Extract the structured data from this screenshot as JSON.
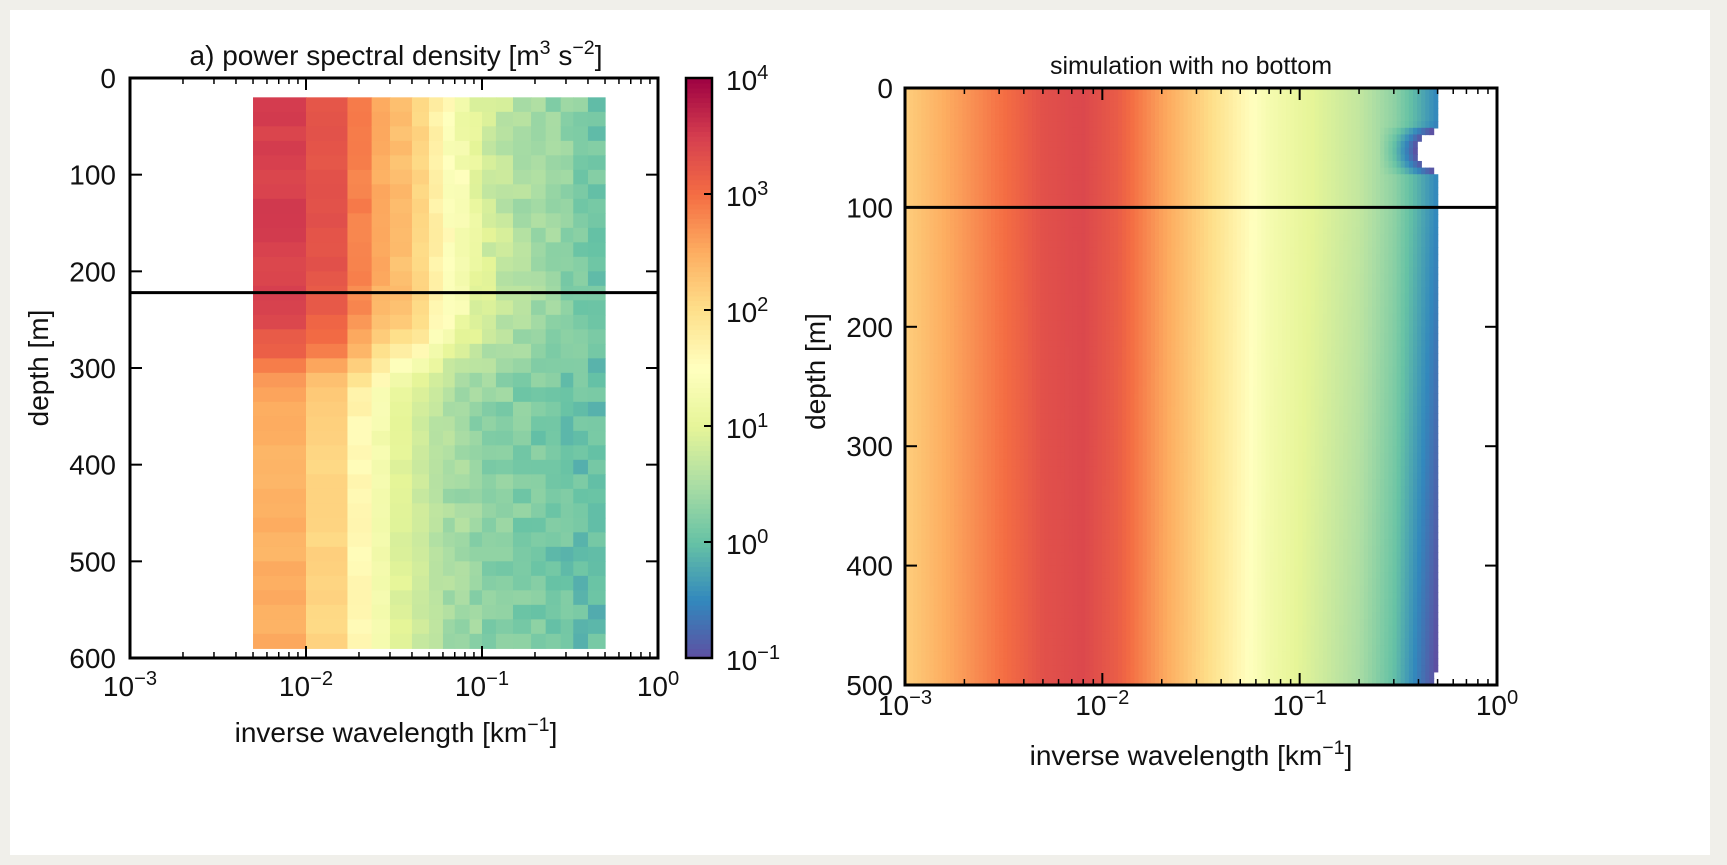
{
  "figure": {
    "background": "#ffffff",
    "frame_color": "#f0efea"
  },
  "chart_data": [
    {
      "type": "heatmap",
      "title_parts": [
        "a) power spectral density [m",
        "3",
        " s",
        "−2",
        "]"
      ],
      "xlabel_parts": [
        "inverse wavelength [km",
        "−1",
        "]"
      ],
      "ylabel": "depth [m]",
      "x_scale": "log",
      "xlim": [
        0.001,
        1
      ],
      "ylim": [
        600,
        0
      ],
      "x_ticks": [
        {
          "value": 0.001,
          "base": "10",
          "exp": "−3"
        },
        {
          "value": 0.01,
          "base": "10",
          "exp": "−2"
        },
        {
          "value": 0.1,
          "base": "10",
          "exp": "−1"
        },
        {
          "value": 1,
          "base": "10",
          "exp": "0"
        }
      ],
      "y_ticks": [
        "0",
        "100",
        "200",
        "300",
        "400",
        "500",
        "600"
      ],
      "data_x_range": [
        0.005,
        0.5
      ],
      "data_y_range": [
        20,
        590
      ],
      "x_bin_edges": [
        0.005,
        0.01,
        0.0172,
        0.0236,
        0.03,
        0.04,
        0.05,
        0.06,
        0.07,
        0.085,
        0.1,
        0.12,
        0.15,
        0.19,
        0.23,
        0.28,
        0.33,
        0.4,
        0.5
      ],
      "column_psd_upper": [
        3000,
        1800,
        700,
        320,
        220,
        130,
        55,
        30,
        20,
        11,
        7,
        5,
        3.5,
        3,
        2.2,
        1.9,
        1.6,
        1.3
      ],
      "column_psd_lower": [
        300,
        130,
        40,
        18,
        9,
        6,
        4,
        3.2,
        2.6,
        2.2,
        1.9,
        1.7,
        1.5,
        1.3,
        1.2,
        1.1,
        1.0,
        0.95
      ],
      "reference_line_depth": 222,
      "colorbar": {
        "scale": "log",
        "range": [
          0.1,
          10000
        ],
        "ticks": [
          {
            "value": 10000,
            "base": "10",
            "exp": "4"
          },
          {
            "value": 1000,
            "base": "10",
            "exp": "3"
          },
          {
            "value": 100,
            "base": "10",
            "exp": "2"
          },
          {
            "value": 10,
            "base": "10",
            "exp": "1"
          },
          {
            "value": 1,
            "base": "10",
            "exp": "0"
          },
          {
            "value": 0.1,
            "base": "10",
            "exp": "−1"
          }
        ]
      },
      "colormap": [
        "#5e4fa2",
        "#3288bd",
        "#66c2a5",
        "#abdda4",
        "#e6f598",
        "#ffffbf",
        "#fee08b",
        "#fdae61",
        "#f46d43",
        "#d53e4f",
        "#9e0142"
      ]
    },
    {
      "type": "heatmap",
      "title": "simulation with no bottom",
      "xlabel_parts": [
        "inverse wavelength [km",
        "−1",
        "]"
      ],
      "ylabel": "depth [m]",
      "x_scale": "log",
      "xlim": [
        0.001,
        1
      ],
      "ylim": [
        500,
        0
      ],
      "x_ticks": [
        {
          "value": 0.001,
          "base": "10",
          "exp": "−3"
        },
        {
          "value": 0.01,
          "base": "10",
          "exp": "−2"
        },
        {
          "value": 0.1,
          "base": "10",
          "exp": "−1"
        },
        {
          "value": 1,
          "base": "10",
          "exp": "0"
        }
      ],
      "y_ticks": [
        "0",
        "100",
        "200",
        "300",
        "400",
        "500"
      ],
      "data_x_max": 0.5,
      "mixed_layer_depth": 100,
      "reference_line_depth": 100,
      "surface_psd": [
        {
          "k": 0.001,
          "psd": 150
        },
        {
          "k": 0.003,
          "psd": 900
        },
        {
          "k": 0.005,
          "psd": 2000
        },
        {
          "k": 0.008,
          "psd": 2500
        },
        {
          "k": 0.012,
          "psd": 1500
        },
        {
          "k": 0.02,
          "psd": 400
        },
        {
          "k": 0.04,
          "psd": 80
        },
        {
          "k": 0.07,
          "psd": 20
        },
        {
          "k": 0.1,
          "psd": 12
        },
        {
          "k": 0.2,
          "psd": 5
        },
        {
          "k": 0.3,
          "psd": 2
        },
        {
          "k": 0.5,
          "psd": 0.3
        }
      ]
    }
  ]
}
